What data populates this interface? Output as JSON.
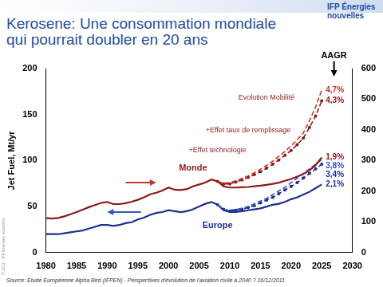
{
  "chart_data": {
    "type": "line",
    "title": "Kerosene: Une consommation mondiale qui pourrait doubler en 20 ans",
    "logo": "IFP Énergies nouvelles",
    "side_note": "© 2011 - IFP Energies nouvelles",
    "source": "Source: Etude Européenne Alpha Bird (IFPEN) - Perspectives d'évolution de l'aviation civile à 2040 ? 16/12/2011",
    "y_label": "Jet Fuel, Mt/yr",
    "x": [
      1980,
      1981,
      1982,
      1983,
      1984,
      1985,
      1986,
      1987,
      1988,
      1989,
      1990,
      1991,
      1992,
      1993,
      1994,
      1995,
      1996,
      1997,
      1998,
      1999,
      2000,
      2001,
      2002,
      2003,
      2004,
      2005,
      2006,
      2007,
      2008,
      2009,
      2010,
      2011,
      2012,
      2013,
      2014,
      2015,
      2016,
      2017,
      2018,
      2019,
      2020,
      2021,
      2022,
      2023,
      2024,
      2025
    ],
    "xlim": [
      1980,
      2030
    ],
    "xticks": [
      1980,
      1985,
      1990,
      1995,
      2000,
      2005,
      2010,
      2015,
      2020,
      2025,
      2030
    ],
    "ylim": [
      0,
      200
    ],
    "yticks": [
      0,
      50,
      100,
      150,
      200
    ],
    "y2lim": [
      0,
      600
    ],
    "y2ticks": [
      0,
      100,
      200,
      300,
      400,
      500,
      600
    ],
    "grid": false,
    "series": [
      {
        "name": "4,7%",
        "color": "#c0392b",
        "axis": "y2",
        "line_style": "dashed",
        "marker": "none",
        "values": [
          null,
          null,
          null,
          null,
          null,
          null,
          null,
          null,
          null,
          null,
          null,
          null,
          null,
          null,
          null,
          null,
          null,
          null,
          null,
          null,
          null,
          null,
          null,
          null,
          null,
          null,
          null,
          null,
          232,
          226,
          228,
          234,
          242,
          250,
          260,
          272,
          284,
          298,
          314,
          330,
          348,
          368,
          390,
          430,
          475,
          530
        ]
      },
      {
        "name": "4,3%",
        "color": "#8b1a1a",
        "axis": "y2",
        "line_style": "dashed",
        "marker": "circle",
        "values": [
          null,
          null,
          null,
          null,
          null,
          null,
          null,
          null,
          null,
          null,
          null,
          null,
          null,
          null,
          null,
          null,
          null,
          null,
          null,
          null,
          null,
          null,
          null,
          null,
          null,
          null,
          null,
          null,
          232,
          224,
          224,
          230,
          237,
          245,
          254,
          264,
          275,
          288,
          302,
          317,
          333,
          352,
          373,
          408,
          445,
          495
        ]
      },
      {
        "name": "1,9%",
        "color": "#8b1a1a",
        "axis": "y2",
        "line_style": "solid",
        "marker": "none",
        "values": [
          112,
          111,
          113,
          118,
          125,
          132,
          140,
          148,
          155,
          162,
          165,
          158,
          158,
          161,
          166,
          172,
          180,
          190,
          195,
          202,
          212,
          205,
          204,
          207,
          216,
          222,
          228,
          238,
          232,
          216,
          212,
          212,
          213,
          214,
          216,
          218,
          221,
          224,
          228,
          234,
          240,
          248,
          256,
          268,
          285,
          310
        ]
      },
      {
        "name": "3,8%",
        "color": "#2f55c8",
        "line_style": "dashed",
        "marker": "none",
        "values": [
          null,
          null,
          null,
          null,
          null,
          null,
          null,
          null,
          null,
          null,
          null,
          null,
          null,
          null,
          null,
          null,
          null,
          null,
          null,
          null,
          null,
          null,
          null,
          null,
          null,
          null,
          null,
          null,
          52,
          47,
          46,
          47,
          48,
          50,
          53,
          56,
          59,
          63,
          67,
          71,
          76,
          81,
          86,
          91,
          96,
          101
        ]
      },
      {
        "name": "3,4%",
        "color": "#1f2f8f",
        "line_style": "dashed",
        "marker": "circle",
        "values": [
          null,
          null,
          null,
          null,
          null,
          null,
          null,
          null,
          null,
          null,
          null,
          null,
          null,
          null,
          null,
          null,
          null,
          null,
          null,
          null,
          null,
          null,
          null,
          null,
          null,
          null,
          null,
          null,
          52,
          47,
          45,
          46,
          47,
          49,
          51,
          54,
          57,
          60,
          64,
          68,
          72,
          76,
          81,
          86,
          91,
          96
        ]
      },
      {
        "name": "2,1%",
        "color": "#1f2f8f",
        "line_style": "solid",
        "marker": "none",
        "values": [
          20,
          20,
          20,
          21,
          22,
          23,
          24,
          26,
          28,
          30,
          30,
          29,
          30,
          32,
          33,
          36,
          38,
          41,
          43,
          44,
          46,
          45,
          44,
          45,
          47,
          50,
          53,
          55,
          52,
          46,
          44,
          44,
          45,
          46,
          47,
          48,
          50,
          52,
          53,
          55,
          58,
          60,
          63,
          66,
          70,
          74
        ]
      }
    ],
    "annotations": [
      {
        "text": "Monde",
        "x": 2004,
        "y": 92,
        "color": "#8b1a1a"
      },
      {
        "text": "Europe",
        "x": 2008,
        "y": 29,
        "color": "#1f2f8f"
      },
      {
        "text": "+Effet technologie",
        "x": 2008,
        "y": 111,
        "color": "#8b1a1a"
      },
      {
        "text": "+Effet taux de remplissage",
        "x": 2013,
        "y": 133,
        "color": "#8b1a1a"
      },
      {
        "text": "Evolution Mobilité",
        "x": 2016,
        "y": 168,
        "color": "#8b1a1a"
      },
      {
        "text": "AAGR",
        "x": 2027,
        "y": 214,
        "color": "#000000"
      }
    ]
  }
}
